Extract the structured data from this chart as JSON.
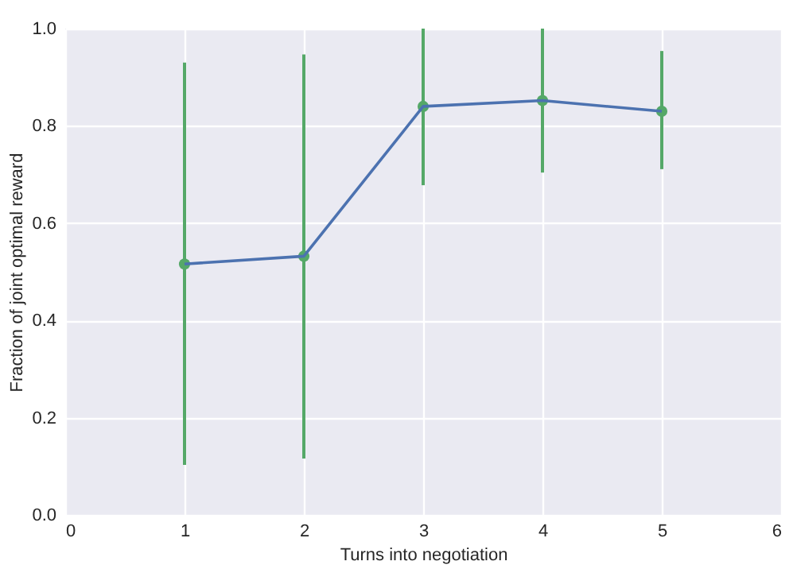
{
  "chart_data": {
    "type": "line",
    "xlabel": "Turns into negotiation",
    "ylabel": "Fraction of joint optimal reward",
    "x": [
      1,
      2,
      3,
      4,
      5
    ],
    "series": [
      {
        "color": "#4c72b0",
        "marker": "none",
        "values": [
          0.516,
          0.532,
          0.84,
          0.852,
          0.83
        ]
      },
      {
        "type": "scatter",
        "color": "#55a868",
        "marker": "circle",
        "values": [
          0.516,
          0.532,
          0.84,
          0.852,
          0.83
        ],
        "errors": [
          [
            0.103,
            0.93
          ],
          [
            0.116,
            0.947
          ],
          [
            0.678,
            1.0
          ],
          [
            0.704,
            1.0
          ],
          [
            0.711,
            0.954
          ]
        ]
      }
    ],
    "xlim": [
      0,
      6
    ],
    "xticks": [
      0,
      1,
      2,
      3,
      4,
      5,
      6
    ],
    "ylim": [
      0,
      1
    ],
    "yticks": [
      {
        "value": 0,
        "label": "0.0"
      },
      {
        "value": 0.2,
        "label": "0.2"
      },
      {
        "value": 0.4,
        "label": "0.4"
      },
      {
        "value": 0.6,
        "label": "0.6"
      },
      {
        "value": 0.8,
        "label": "0.8"
      },
      {
        "value": 1,
        "label": "1.0"
      }
    ],
    "grid": true
  }
}
